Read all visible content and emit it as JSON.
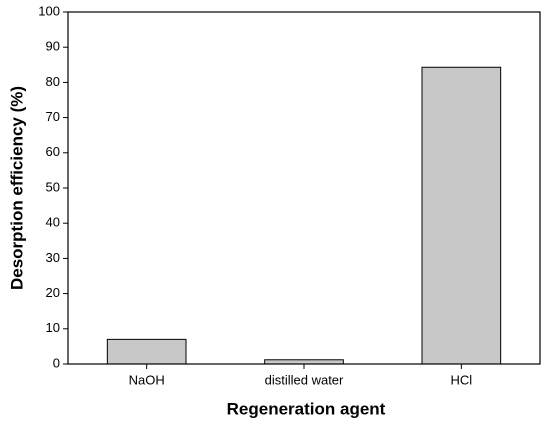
{
  "chart_data": {
    "type": "bar",
    "x_label": "Regeneration agent",
    "y_label": "Desorption efficiency (%)",
    "categories": [
      "NaOH",
      "distilled water",
      "HCl"
    ],
    "values": [
      7,
      1.2,
      84.3
    ],
    "color": "#c8c8c8",
    "ylim": [
      0,
      100
    ],
    "yticks": [
      0,
      10,
      20,
      30,
      40,
      50,
      60,
      70,
      80,
      90,
      100
    ]
  }
}
